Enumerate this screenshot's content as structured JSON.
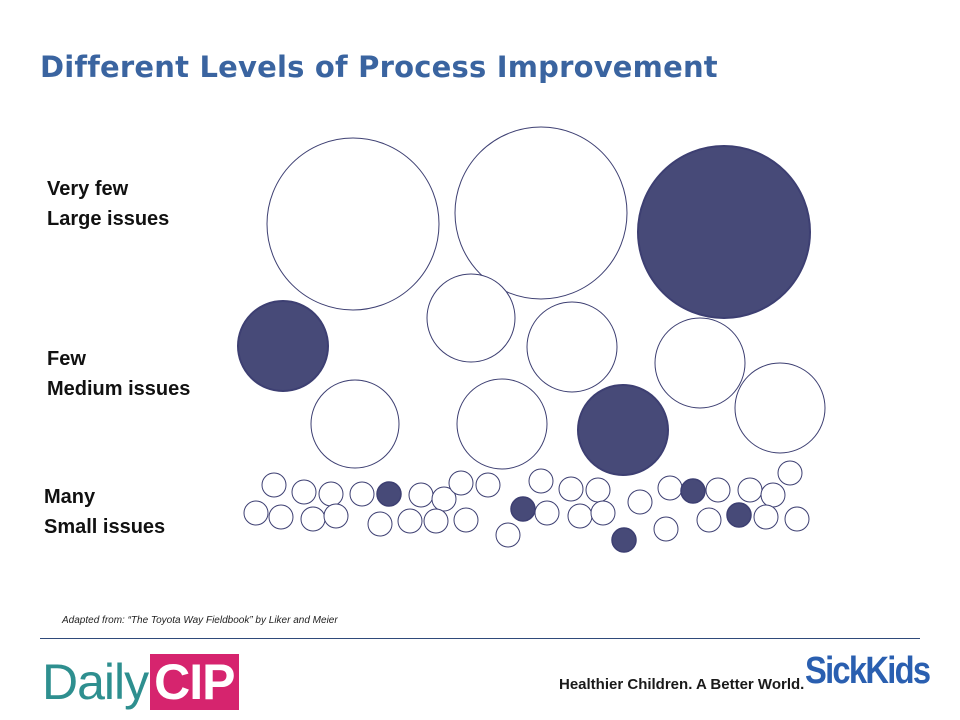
{
  "title": "Different Levels of Process Improvement",
  "labels": {
    "large": [
      "Very few",
      "Large issues"
    ],
    "medium": [
      "Few",
      "Medium issues"
    ],
    "small": [
      "Many",
      "Small issues"
    ]
  },
  "credit": "Adapted from:  “The Toyota Way Fieldbook” by Liker and Meier",
  "footer": {
    "brand_part1": "Daily",
    "brand_part2": "CIP",
    "tagline": "Healthier Children. A Better World.",
    "partner_logo": "SickKids"
  },
  "colors": {
    "title": "#3a64a0",
    "circle_fill": "#474a78",
    "circle_outline": "#3d3f72",
    "brand_teal": "#2e8f8f",
    "brand_pink": "#d6246e",
    "partner_blue": "#2a5fb0"
  }
}
